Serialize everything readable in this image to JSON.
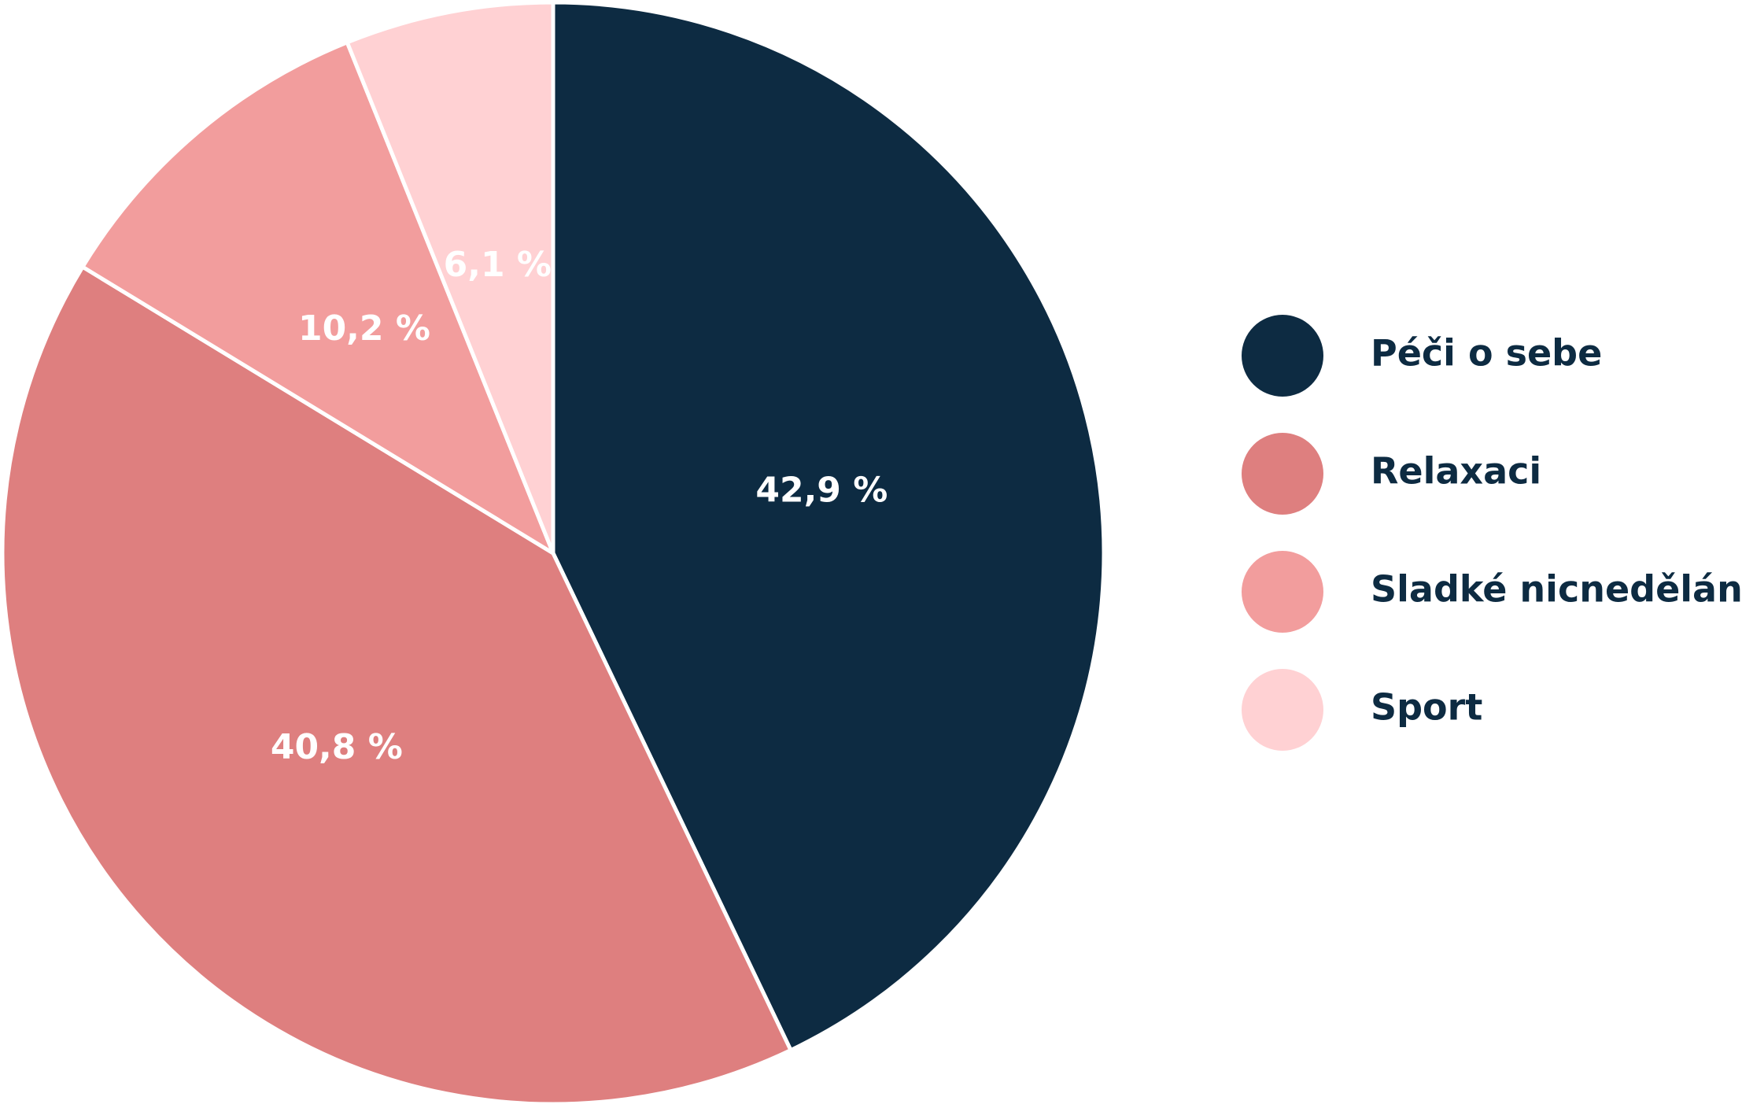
{
  "chart_data": {
    "type": "pie",
    "categories": [
      "Péči o sebe",
      "Relaxaci",
      "Sladké nicnedělání",
      "Sport"
    ],
    "values": [
      42.9,
      40.8,
      10.2,
      6.1
    ],
    "value_labels": [
      "42,9 %",
      "40,8 %",
      "10,2 %",
      "6,1 %"
    ],
    "colors": [
      "#0d2b42",
      "#de7f7f",
      "#f29d9d",
      "#ffd1d3"
    ],
    "label_colors": [
      "#ffffff",
      "#ffffff",
      "#ffffff",
      "#ffffff"
    ],
    "start": "12 o'clock",
    "direction": "clockwise",
    "legend_position": "right"
  }
}
